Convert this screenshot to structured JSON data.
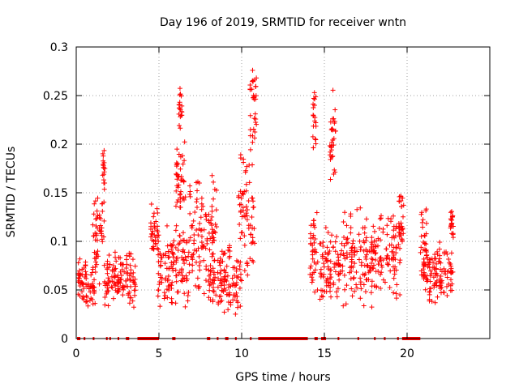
{
  "chart_data": {
    "type": "scatter",
    "title": "Day 196 of 2019, SRMTID for receiver wntn",
    "xlabel": "GPS time / hours",
    "ylabel": "SRMTID / TECUs",
    "xlim": [
      0,
      25
    ],
    "ylim": [
      0,
      0.3
    ],
    "xticks": [
      0,
      5,
      10,
      15,
      20
    ],
    "xtick_labels": [
      "0",
      "5",
      "10",
      "15",
      "20"
    ],
    "yticks": [
      0,
      0.05,
      0.1,
      0.15,
      0.2,
      0.25,
      0.3
    ],
    "ytick_labels": [
      "0",
      "0.05",
      "0.1",
      "0.15",
      "0.2",
      "0.25",
      "0.3"
    ],
    "grid": true,
    "marker": "+",
    "color": "#ff0000",
    "series": [
      {
        "name": "SRMTID",
        "clusters": [
          {
            "x": [
              0.1,
              1.2
            ],
            "y": [
              0.025,
              0.09
            ]
          },
          {
            "x": [
              1.0,
              1.7
            ],
            "y": [
              0.04,
              0.16
            ]
          },
          {
            "x": [
              1.6,
              1.75
            ],
            "y": [
              0.15,
              0.2
            ]
          },
          {
            "x": [
              1.7,
              3.6
            ],
            "y": [
              0.03,
              0.09
            ]
          },
          {
            "x": [
              4.5,
              5.0
            ],
            "y": [
              0.08,
              0.14
            ]
          },
          {
            "x": [
              4.9,
              6.8
            ],
            "y": [
              0.03,
              0.12
            ]
          },
          {
            "x": [
              6.0,
              6.6
            ],
            "y": [
              0.12,
              0.21
            ]
          },
          {
            "x": [
              6.2,
              6.4
            ],
            "y": [
              0.21,
              0.26
            ]
          },
          {
            "x": [
              6.8,
              8.5
            ],
            "y": [
              0.04,
              0.17
            ]
          },
          {
            "x": [
              8.0,
              10.0
            ],
            "y": [
              0.02,
              0.1
            ]
          },
          {
            "x": [
              9.8,
              10.8
            ],
            "y": [
              0.05,
              0.2
            ]
          },
          {
            "x": [
              10.5,
              10.9
            ],
            "y": [
              0.18,
              0.29
            ]
          },
          {
            "x": [
              14.1,
              14.6
            ],
            "y": [
              0.04,
              0.14
            ]
          },
          {
            "x": [
              14.3,
              14.5
            ],
            "y": [
              0.18,
              0.265
            ]
          },
          {
            "x": [
              14.7,
              16.0
            ],
            "y": [
              0.03,
              0.12
            ]
          },
          {
            "x": [
              15.3,
              15.7
            ],
            "y": [
              0.15,
              0.26
            ]
          },
          {
            "x": [
              16.0,
              19.6
            ],
            "y": [
              0.03,
              0.14
            ]
          },
          {
            "x": [
              19.5,
              19.8
            ],
            "y": [
              0.09,
              0.16
            ]
          },
          {
            "x": [
              20.8,
              21.2
            ],
            "y": [
              0.05,
              0.14
            ]
          },
          {
            "x": [
              21.0,
              22.8
            ],
            "y": [
              0.03,
              0.1
            ]
          },
          {
            "x": [
              22.6,
              22.8
            ],
            "y": [
              0.1,
              0.135
            ]
          }
        ],
        "zero_segments": [
          [
            0.05,
            0.25
          ],
          [
            0.45,
            0.55
          ],
          [
            1.0,
            1.1
          ],
          [
            1.8,
            1.9
          ],
          [
            2.0,
            2.1
          ],
          [
            2.5,
            2.6
          ],
          [
            3.0,
            3.2
          ],
          [
            3.7,
            5.0
          ],
          [
            5.8,
            6.0
          ],
          [
            7.9,
            8.1
          ],
          [
            8.5,
            8.6
          ],
          [
            9.0,
            9.2
          ],
          [
            9.6,
            9.7
          ],
          [
            10.5,
            10.6
          ],
          [
            11.0,
            14.0
          ],
          [
            14.4,
            14.6
          ],
          [
            14.8,
            15.1
          ],
          [
            15.8,
            15.9
          ],
          [
            17.0,
            17.1
          ],
          [
            18.0,
            18.1
          ],
          [
            18.6,
            18.7
          ],
          [
            19.4,
            19.5
          ],
          [
            19.7,
            20.8
          ]
        ]
      }
    ]
  }
}
